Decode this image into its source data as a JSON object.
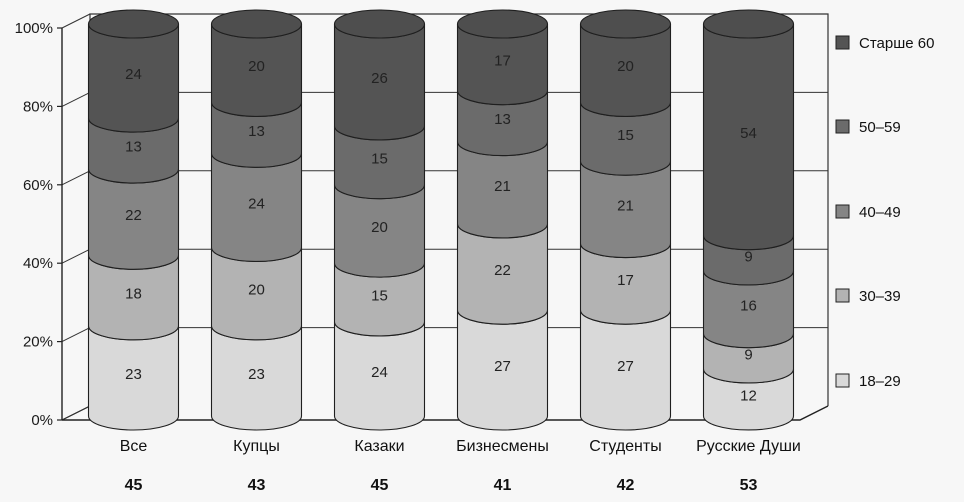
{
  "chart_data": {
    "type": "bar",
    "stacked": true,
    "style": "3d-cylinder",
    "title": "",
    "xlabel": "",
    "ylabel": "",
    "ylim": [
      0,
      100
    ],
    "y_ticks": [
      "0%",
      "20%",
      "40%",
      "60%",
      "80%",
      "100%"
    ],
    "grid": true,
    "legend_position": "right",
    "categories": [
      "Все",
      "Купцы",
      "Казаки",
      "Бизнесмены",
      "Студенты",
      "Русские Души"
    ],
    "category_values": [
      "45",
      "43",
      "45",
      "41",
      "42",
      "53"
    ],
    "series": [
      {
        "name": "18–29",
        "color": "#d9d9d9",
        "values": [
          23,
          23,
          24,
          27,
          27,
          12
        ]
      },
      {
        "name": "30–39",
        "color": "#b3b3b3",
        "values": [
          18,
          20,
          15,
          22,
          17,
          9
        ]
      },
      {
        "name": "40–49",
        "color": "#858585",
        "values": [
          22,
          24,
          20,
          21,
          21,
          16
        ]
      },
      {
        "name": "50–59",
        "color": "#6b6b6b",
        "values": [
          13,
          13,
          15,
          13,
          15,
          9
        ]
      },
      {
        "name": "Старше 60",
        "color": "#545454",
        "values": [
          24,
          20,
          26,
          17,
          20,
          54
        ]
      }
    ]
  }
}
